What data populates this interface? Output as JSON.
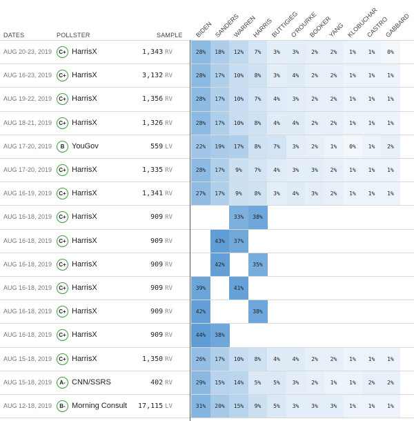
{
  "headers": {
    "dates": "DATES",
    "pollster": "POLLSTER",
    "sample": "SAMPLE"
  },
  "candidates": [
    "BIDEN",
    "SANDERS",
    "WARREN",
    "HARRIS",
    "BUTTIGIEG",
    "O'ROURKE",
    "BOOKER",
    "YANG",
    "KLOBUCHAR",
    "CASTRO",
    "GABBARD"
  ],
  "colors": {
    "cell_max": "#5b9bd5",
    "cell_min": "#f2f7fc",
    "grade_ring": "#3f9a3f",
    "divider": "#555555"
  },
  "rows": [
    {
      "date": "AUG 20-23, 2019",
      "grade": "C+",
      "pollster": "HarrisX",
      "sample": "1,343",
      "pop": "RV",
      "values": [
        "28%",
        "18%",
        "12%",
        "7%",
        "3%",
        "3%",
        "2%",
        "2%",
        "1%",
        "1%",
        "0%"
      ]
    },
    {
      "date": "AUG 16-23, 2019",
      "grade": "C+",
      "pollster": "HarrisX",
      "sample": "3,132",
      "pop": "RV",
      "values": [
        "28%",
        "17%",
        "10%",
        "8%",
        "3%",
        "4%",
        "2%",
        "2%",
        "1%",
        "1%",
        "1%"
      ]
    },
    {
      "date": "AUG 19-22, 2019",
      "grade": "C+",
      "pollster": "HarrisX",
      "sample": "1,356",
      "pop": "RV",
      "values": [
        "28%",
        "17%",
        "10%",
        "7%",
        "4%",
        "3%",
        "2%",
        "2%",
        "1%",
        "1%",
        "1%"
      ]
    },
    {
      "date": "AUG 18-21, 2019",
      "grade": "C+",
      "pollster": "HarrisX",
      "sample": "1,326",
      "pop": "RV",
      "values": [
        "28%",
        "17%",
        "10%",
        "8%",
        "4%",
        "4%",
        "2%",
        "2%",
        "1%",
        "1%",
        "1%"
      ]
    },
    {
      "date": "AUG 17-20, 2019",
      "grade": "B",
      "pollster": "YouGov",
      "sample": "559",
      "pop": "LV",
      "values": [
        "22%",
        "19%",
        "17%",
        "8%",
        "7%",
        "3%",
        "2%",
        "1%",
        "0%",
        "1%",
        "2%"
      ]
    },
    {
      "date": "AUG 17-20, 2019",
      "grade": "C+",
      "pollster": "HarrisX",
      "sample": "1,335",
      "pop": "RV",
      "values": [
        "28%",
        "17%",
        "9%",
        "7%",
        "4%",
        "3%",
        "3%",
        "2%",
        "1%",
        "1%",
        "1%"
      ]
    },
    {
      "date": "AUG 16-19, 2019",
      "grade": "C+",
      "pollster": "HarrisX",
      "sample": "1,341",
      "pop": "RV",
      "values": [
        "27%",
        "17%",
        "9%",
        "8%",
        "3%",
        "4%",
        "3%",
        "2%",
        "1%",
        "1%",
        "1%"
      ]
    },
    {
      "date": "AUG 16-18, 2019",
      "grade": "C+",
      "pollster": "HarrisX",
      "sample": "909",
      "pop": "RV",
      "values": [
        "",
        "",
        "33%",
        "38%",
        "",
        "",
        "",
        "",
        "",
        "",
        ""
      ]
    },
    {
      "date": "AUG 16-18, 2019",
      "grade": "C+",
      "pollster": "HarrisX",
      "sample": "909",
      "pop": "RV",
      "values": [
        "",
        "43%",
        "37%",
        "",
        "",
        "",
        "",
        "",
        "",
        "",
        ""
      ]
    },
    {
      "date": "AUG 16-18, 2019",
      "grade": "C+",
      "pollster": "HarrisX",
      "sample": "909",
      "pop": "RV",
      "values": [
        "",
        "42%",
        "",
        "35%",
        "",
        "",
        "",
        "",
        "",
        "",
        ""
      ]
    },
    {
      "date": "AUG 16-18, 2019",
      "grade": "C+",
      "pollster": "HarrisX",
      "sample": "909",
      "pop": "RV",
      "values": [
        "39%",
        "",
        "41%",
        "",
        "",
        "",
        "",
        "",
        "",
        "",
        ""
      ]
    },
    {
      "date": "AUG 16-18, 2019",
      "grade": "C+",
      "pollster": "HarrisX",
      "sample": "909",
      "pop": "RV",
      "values": [
        "42%",
        "",
        "",
        "38%",
        "",
        "",
        "",
        "",
        "",
        "",
        ""
      ]
    },
    {
      "date": "AUG 16-18, 2019",
      "grade": "C+",
      "pollster": "HarrisX",
      "sample": "909",
      "pop": "RV",
      "values": [
        "44%",
        "38%",
        "",
        "",
        "",
        "",
        "",
        "",
        "",
        "",
        ""
      ]
    },
    {
      "date": "AUG 15-18, 2019",
      "grade": "C+",
      "pollster": "HarrisX",
      "sample": "1,350",
      "pop": "RV",
      "values": [
        "26%",
        "17%",
        "10%",
        "8%",
        "4%",
        "4%",
        "2%",
        "2%",
        "1%",
        "1%",
        "1%"
      ]
    },
    {
      "date": "AUG 15-18, 2019",
      "grade": "A-",
      "pollster": "CNN/SSRS",
      "sample": "402",
      "pop": "RV",
      "values": [
        "29%",
        "15%",
        "14%",
        "5%",
        "5%",
        "3%",
        "2%",
        "1%",
        "1%",
        "2%",
        "2%"
      ]
    },
    {
      "date": "AUG 12-18, 2019",
      "grade": "B-",
      "pollster": "Morning Consult",
      "sample": "17,115",
      "pop": "LV",
      "values": [
        "31%",
        "20%",
        "15%",
        "9%",
        "5%",
        "3%",
        "3%",
        "3%",
        "1%",
        "1%",
        "1%"
      ]
    }
  ]
}
